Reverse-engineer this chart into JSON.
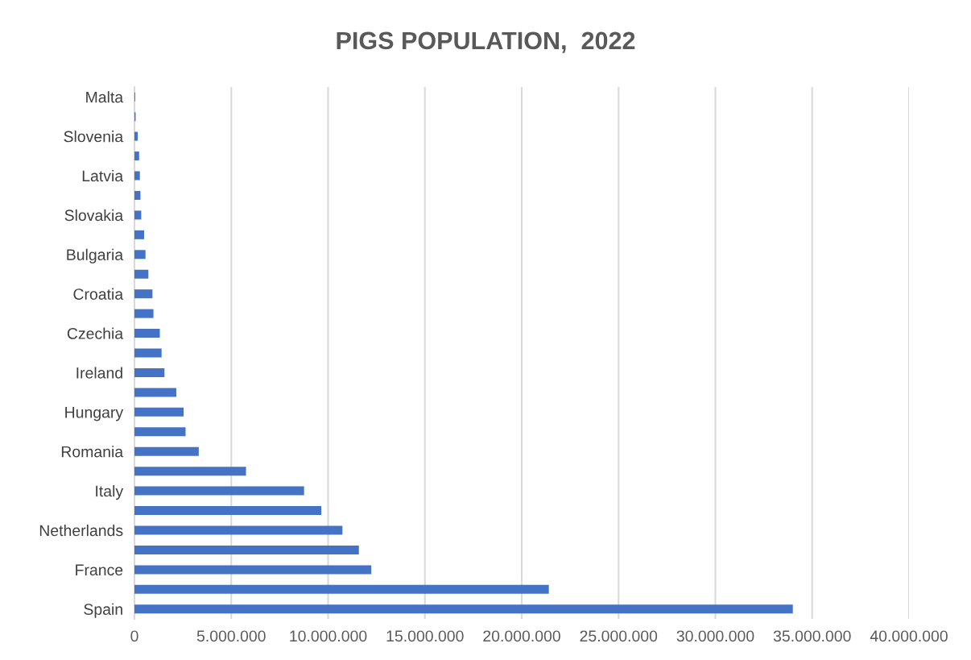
{
  "chart_data": {
    "type": "bar",
    "orientation": "horizontal",
    "title": "PIGS POPULATION,  2022",
    "categories": [
      "Malta",
      null,
      "Slovenia",
      null,
      "Latvia",
      null,
      "Slovakia",
      null,
      "Bulgaria",
      null,
      "Croatia",
      null,
      "Czechia",
      null,
      "Ireland",
      null,
      "Hungary",
      null,
      "Romania",
      null,
      "Italy",
      null,
      "Netherlands",
      null,
      "France",
      null,
      "Spain"
    ],
    "values": [
      40000,
      60000,
      170000,
      240000,
      280000,
      310000,
      350000,
      500000,
      570000,
      720000,
      930000,
      980000,
      1310000,
      1400000,
      1550000,
      2160000,
      2540000,
      2640000,
      3320000,
      5760000,
      8760000,
      9650000,
      10740000,
      11590000,
      12230000,
      21400000,
      34000000
    ],
    "color": "#4472c4",
    "xlim": [
      0,
      40000000
    ],
    "xticks": [
      0,
      {
        "value": 5000000,
        "label": "5.000.000"
      },
      {
        "value": 10000000,
        "label": "10.000.000"
      },
      {
        "value": 15000000,
        "label": "15.000.000"
      },
      {
        "value": 20000000,
        "label": "20.000.000"
      },
      {
        "value": 25000000,
        "label": "25.000.000"
      },
      {
        "value": 30000000,
        "label": "30.000.000"
      },
      {
        "value": 35000000,
        "label": "35.000.000"
      },
      {
        "value": 40000000,
        "label": "40.000.000"
      }
    ],
    "grid": "x",
    "legend": false
  }
}
